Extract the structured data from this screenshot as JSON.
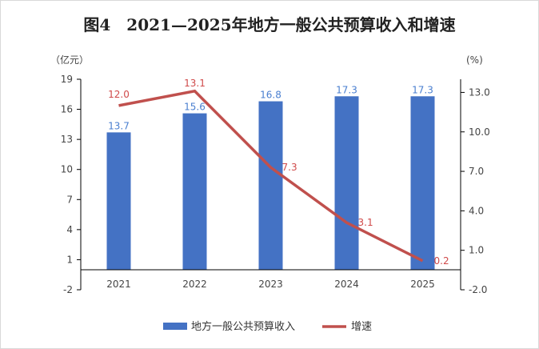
{
  "chart_data": {
    "type": "bar+line",
    "title": "图4　2021—2025年地方一般公共预算收入和增速",
    "categories": [
      "2021",
      "2022",
      "2023",
      "2024",
      "2025"
    ],
    "series": [
      {
        "name": "地方一般公共预算收入",
        "type": "bar",
        "axis": "left",
        "color": "#4472C4",
        "values": [
          13.7,
          15.6,
          16.8,
          17.3,
          17.3
        ],
        "labels": [
          "13.7",
          "15.6",
          "16.8",
          "17.3",
          "17.3"
        ]
      },
      {
        "name": "增速",
        "type": "line",
        "axis": "right",
        "color": "#C0504D",
        "values": [
          12.0,
          13.1,
          7.3,
          3.1,
          0.2
        ],
        "labels": [
          "12.0",
          "13.1",
          "7.3",
          "3.1",
          "0.2"
        ]
      }
    ],
    "ylabel": "（亿元）",
    "ylabel_right": "(%)",
    "ylim": [
      -2,
      19
    ],
    "ylim_right": [
      -2,
      14
    ],
    "yticks": [
      "19",
      "16",
      "13",
      "10",
      "7",
      "4",
      "1",
      "-2"
    ],
    "yticks_values": [
      19,
      16,
      13,
      10,
      7,
      4,
      1,
      -2
    ],
    "yticks_right": [
      "13.0",
      "10.0",
      "7.0",
      "4.0",
      "1.0",
      "-2.0"
    ],
    "yticks_right_values": [
      13,
      10,
      7,
      4,
      1,
      -2
    ],
    "legend": "bottom"
  }
}
